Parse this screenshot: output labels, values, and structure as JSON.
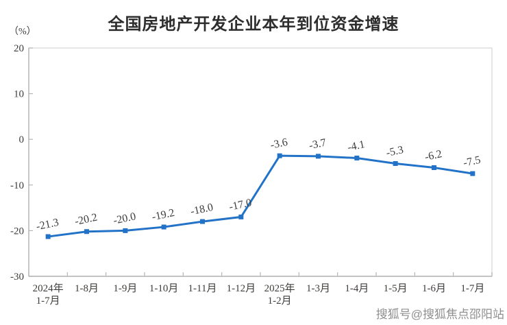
{
  "title": "全国房地产开发企业本年到位资金增速",
  "y_axis_unit": "（%）",
  "watermark": "搜狐号@搜狐焦点邵阳站",
  "colors": {
    "line": "#2272c8",
    "text": "#3e3c3a",
    "title_text": "#2d2d2d",
    "axis": "#b5b5b5",
    "border": "#dcdcdc",
    "watermark_text": "#8f8f8f"
  },
  "chart_data": {
    "type": "line",
    "title": "全国房地产开发企业本年到位资金增速",
    "ylabel": "（%）",
    "categories": [
      "2024年\n1-7月",
      "1-8月",
      "1-9月",
      "1-10月",
      "1-11月",
      "1-12月",
      "2025年\n1-2月",
      "1-3月",
      "1-4月",
      "1-5月",
      "1-6月",
      "1-7月"
    ],
    "values": [
      -21.3,
      -20.2,
      -20.0,
      -19.2,
      -18.0,
      -17.0,
      -3.6,
      -3.7,
      -4.1,
      -5.3,
      -6.2,
      -7.5
    ],
    "data_labels": [
      "-21.3",
      "-20.2",
      "-20.0",
      "-19.2",
      "-18.0",
      "-17.0",
      "-3.6",
      "-3.7",
      "-4.1",
      "-5.3",
      "-6.2",
      "-7.5"
    ],
    "ylim": [
      -30,
      20
    ],
    "y_ticks": [
      20,
      10,
      0,
      -10,
      -20,
      -30
    ],
    "grid": false,
    "legend": false,
    "marker": "square",
    "label_rotation_deg": -12
  }
}
